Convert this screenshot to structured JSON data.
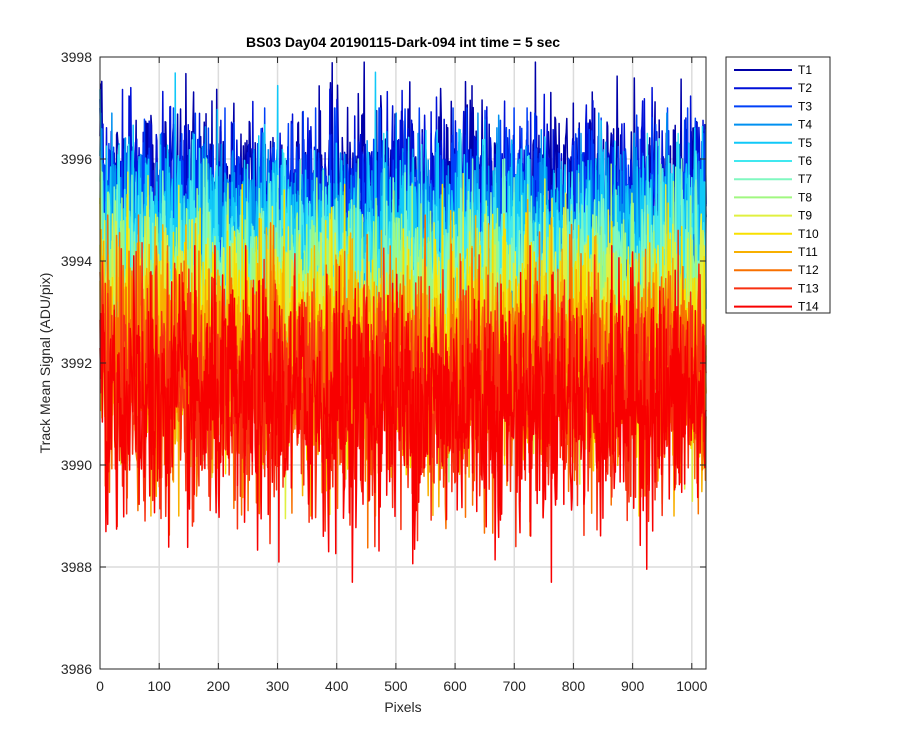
{
  "chart_data": {
    "type": "line",
    "title": "BS03 Day04 20190115-Dark-094 int time = 5 sec",
    "xlabel": "Pixels",
    "ylabel": "Track Mean Signal (ADU/pix)",
    "xlim": [
      0,
      1024
    ],
    "ylim": [
      3986,
      3998
    ],
    "xticks": [
      0,
      100,
      200,
      300,
      400,
      500,
      600,
      700,
      800,
      900,
      1000
    ],
    "yticks": [
      3986,
      3988,
      3990,
      3992,
      3994,
      3996,
      3998
    ],
    "grid": true,
    "legend_position": "outside-top-right",
    "n_points": 1024,
    "series": [
      {
        "name": "T1",
        "color": "#0000A8",
        "mean": 3995.3,
        "noise": 0.95,
        "min": 3993.1,
        "max": 3997.9
      },
      {
        "name": "T2",
        "color": "#0010D8",
        "mean": 3995.1,
        "noise": 0.95,
        "min": 3992.8,
        "max": 3997.4
      },
      {
        "name": "T3",
        "color": "#0040F8",
        "mean": 3994.8,
        "noise": 0.95,
        "min": 3992.5,
        "max": 3997.0
      },
      {
        "name": "T4",
        "color": "#0090F0",
        "mean": 3994.5,
        "noise": 0.95,
        "min": 3992.2,
        "max": 3996.9
      },
      {
        "name": "T5",
        "color": "#10C8F8",
        "mean": 3994.3,
        "noise": 0.95,
        "min": 3991.9,
        "max": 3997.7
      },
      {
        "name": "T6",
        "color": "#40E8F0",
        "mean": 3993.8,
        "noise": 1.0,
        "min": 3991.3,
        "max": 3996.5
      },
      {
        "name": "T7",
        "color": "#80F8C0",
        "mean": 3993.3,
        "noise": 1.05,
        "min": 3990.7,
        "max": 3996.0
      },
      {
        "name": "T8",
        "color": "#A0F880",
        "mean": 3992.9,
        "noise": 1.1,
        "min": 3989.3,
        "max": 3995.9
      },
      {
        "name": "T9",
        "color": "#E0F040",
        "mean": 3992.6,
        "noise": 1.1,
        "min": 3988.7,
        "max": 3995.8
      },
      {
        "name": "T10",
        "color": "#F8E000",
        "mean": 3992.3,
        "noise": 1.1,
        "min": 3989.0,
        "max": 3995.5
      },
      {
        "name": "T11",
        "color": "#F8B000",
        "mean": 3992.0,
        "noise": 1.1,
        "min": 3989.0,
        "max": 3995.2
      },
      {
        "name": "T12",
        "color": "#F87000",
        "mean": 3991.7,
        "noise": 1.1,
        "min": 3988.1,
        "max": 3994.9
      },
      {
        "name": "T13",
        "color": "#F83010",
        "mean": 3991.4,
        "noise": 1.15,
        "min": 3988.4,
        "max": 3994.6
      },
      {
        "name": "T14",
        "color": "#F80000",
        "mean": 3991.2,
        "noise": 1.2,
        "min": 3987.7,
        "max": 3994.3
      }
    ]
  }
}
